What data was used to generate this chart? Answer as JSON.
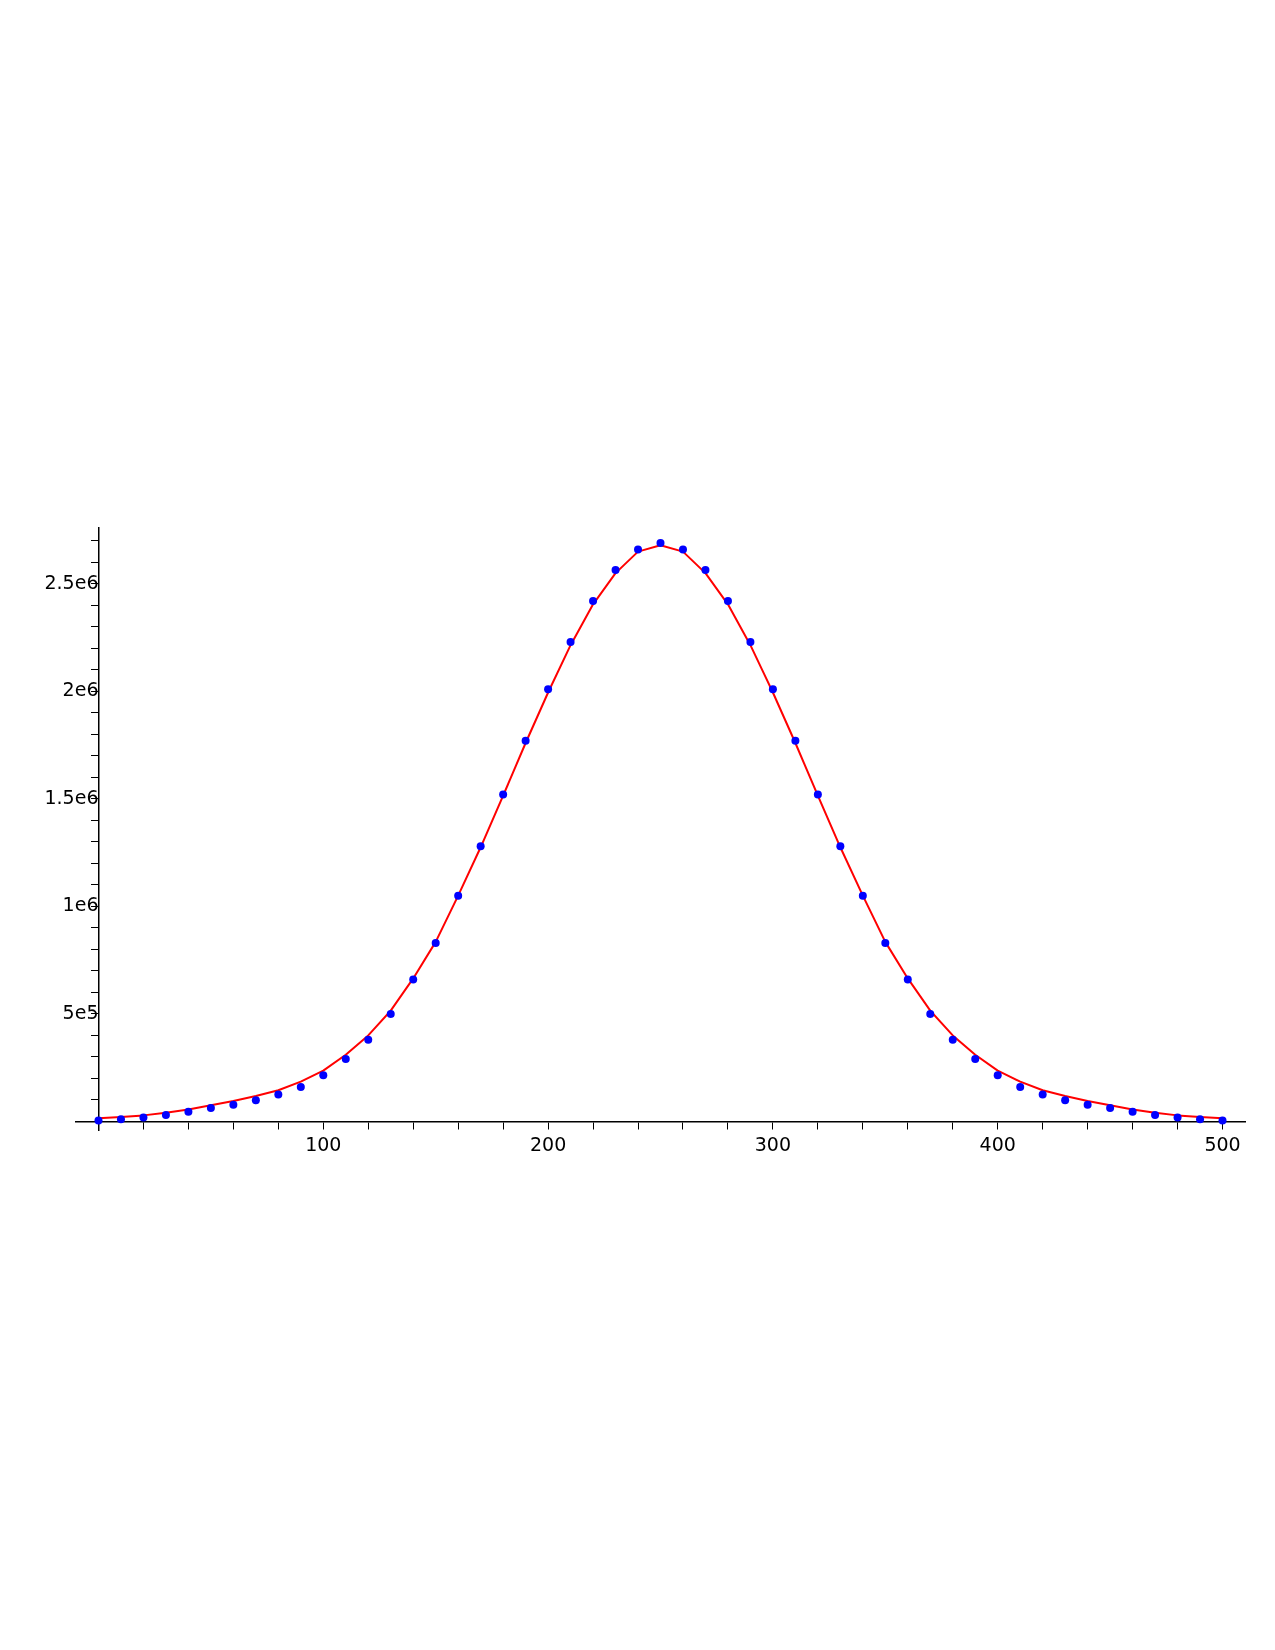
{
  "chart_data": {
    "type": "scatter",
    "x": [
      0,
      10,
      20,
      30,
      40,
      50,
      60,
      70,
      80,
      90,
      100,
      110,
      120,
      130,
      140,
      150,
      160,
      170,
      180,
      190,
      200,
      210,
      220,
      230,
      240,
      250,
      260,
      270,
      280,
      290,
      300,
      310,
      320,
      330,
      340,
      350,
      360,
      370,
      380,
      390,
      400,
      410,
      420,
      430,
      440,
      450,
      460,
      470,
      480,
      490,
      500
    ],
    "series": [
      {
        "type": "scatter",
        "color": "#0000ff",
        "marker": "circle",
        "values": [
          4000,
          10000,
          18000,
          30000,
          45000,
          62000,
          78000,
          98000,
          125000,
          160000,
          215000,
          290000,
          380000,
          500000,
          660000,
          830000,
          1050000,
          1280000,
          1520000,
          1770000,
          2010000,
          2230000,
          2420000,
          2565000,
          2660000,
          2690000,
          2660000,
          2565000,
          2420000,
          2230000,
          2010000,
          1770000,
          1520000,
          1280000,
          1050000,
          830000,
          660000,
          500000,
          380000,
          290000,
          215000,
          160000,
          125000,
          98000,
          78000,
          62000,
          45000,
          30000,
          18000,
          10000,
          4000
        ]
      },
      {
        "type": "line",
        "color": "#ff0000",
        "values": [
          15000,
          20000,
          28000,
          40000,
          55000,
          75000,
          95000,
          118000,
          145000,
          185000,
          236000,
          310000,
          400000,
          515000,
          665000,
          835000,
          1050000,
          1275000,
          1515000,
          1760000,
          1995000,
          2215000,
          2405000,
          2550000,
          2650000,
          2680000,
          2650000,
          2550000,
          2405000,
          2215000,
          1995000,
          1760000,
          1515000,
          1275000,
          1050000,
          835000,
          665000,
          515000,
          400000,
          310000,
          236000,
          185000,
          145000,
          118000,
          95000,
          75000,
          55000,
          40000,
          28000,
          20000,
          15000
        ]
      }
    ],
    "xlim": [
      -10,
      510
    ],
    "xticks": [
      {
        "value": 0,
        "label": null
      },
      {
        "value": 20,
        "label": null
      },
      {
        "value": 40,
        "label": null
      },
      {
        "value": 60,
        "label": null
      },
      {
        "value": 80,
        "label": null
      },
      100,
      {
        "value": 120,
        "label": null
      },
      {
        "value": 140,
        "label": null
      },
      {
        "value": 160,
        "label": null
      },
      {
        "value": 180,
        "label": null
      },
      200,
      {
        "value": 220,
        "label": null
      },
      {
        "value": 240,
        "label": null
      },
      {
        "value": 260,
        "label": null
      },
      {
        "value": 280,
        "label": null
      },
      300,
      {
        "value": 320,
        "label": null
      },
      {
        "value": 340,
        "label": null
      },
      {
        "value": 360,
        "label": null
      },
      {
        "value": 380,
        "label": null
      },
      400,
      {
        "value": 420,
        "label": null
      },
      {
        "value": 440,
        "label": null
      },
      {
        "value": 460,
        "label": null
      },
      {
        "value": 480,
        "label": null
      },
      500
    ],
    "ylim": [
      -40000,
      2760000
    ],
    "yticks": [
      {
        "value": 100000,
        "label": null
      },
      {
        "value": 200000,
        "label": null
      },
      {
        "value": 300000,
        "label": null
      },
      {
        "value": 400000,
        "label": null
      },
      {
        "value": 500000,
        "label": "5e5"
      },
      {
        "value": 600000,
        "label": null
      },
      {
        "value": 700000,
        "label": null
      },
      {
        "value": 800000,
        "label": null
      },
      {
        "value": 900000,
        "label": null
      },
      {
        "value": 1000000,
        "label": "1e6"
      },
      {
        "value": 1100000,
        "label": null
      },
      {
        "value": 1200000,
        "label": null
      },
      {
        "value": 1300000,
        "label": null
      },
      {
        "value": 1400000,
        "label": null
      },
      {
        "value": 1500000,
        "label": "1.5e6"
      },
      {
        "value": 1600000,
        "label": null
      },
      {
        "value": 1700000,
        "label": null
      },
      {
        "value": 1800000,
        "label": null
      },
      {
        "value": 1900000,
        "label": null
      },
      {
        "value": 2000000,
        "label": "2e6"
      },
      {
        "value": 2100000,
        "label": null
      },
      {
        "value": 2200000,
        "label": null
      },
      {
        "value": 2300000,
        "label": null
      },
      {
        "value": 2400000,
        "label": null
      },
      {
        "value": 2500000,
        "label": "2.5e6"
      },
      {
        "value": 2600000,
        "label": null
      },
      {
        "value": 2700000,
        "label": null
      }
    ],
    "grid": false
  }
}
